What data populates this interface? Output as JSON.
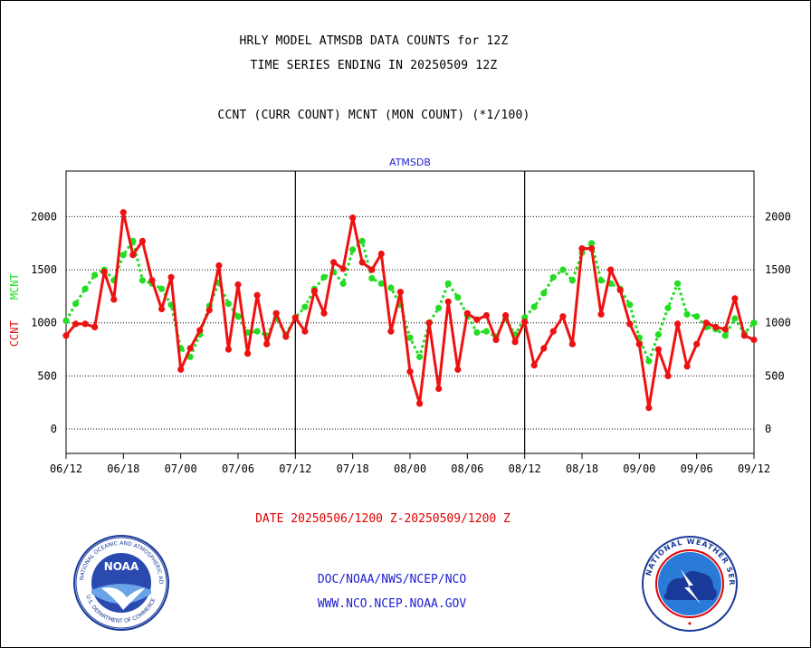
{
  "title": "HRLY MODEL ATMSDB DATA COUNTS for 12Z",
  "subtitle": "TIME SERIES ENDING IN 20250509 12Z",
  "legend_text": "CCNT (CURR COUNT) MCNT (MON COUNT) (*1/100)",
  "date_range": "DATE 20250506/1200 Z-20250509/1200 Z",
  "credit_line1": "DOC/NOAA/NWS/NCEP/NCO",
  "credit_line2": "WWW.NCO.NCEP.NOAA.GOV",
  "logos": {
    "left": "noaa-logo",
    "right": "national-weather-service-logo"
  },
  "colors": {
    "ccnt": "#ee1111",
    "mcnt": "#22dd22",
    "panel_label": "#2020d0",
    "grid": "#000000"
  },
  "chart_data": {
    "type": "line",
    "panel_label": "ATMSDB",
    "ylabel_left": "CCNT",
    "ylabel_right": "MCNT",
    "ylim": [
      -230,
      2430
    ],
    "yticks": [
      0,
      500,
      1000,
      1500,
      2000
    ],
    "xticks": [
      "06/12",
      "06/18",
      "07/00",
      "07/06",
      "07/12",
      "07/18",
      "08/00",
      "08/06",
      "08/12",
      "08/18",
      "09/00",
      "09/06",
      "09/12"
    ],
    "xlim_hours": [
      0,
      72
    ],
    "panel_dividers": [
      "07/12",
      "08/12"
    ],
    "grid": "dotted horizontal",
    "series": [
      {
        "name": "CCNT",
        "style": "solid",
        "x": [
          0,
          1,
          2,
          3,
          4,
          5,
          6,
          7,
          8,
          9,
          10,
          11,
          12,
          13,
          14,
          15,
          16,
          17,
          18,
          19,
          20,
          21,
          22,
          23,
          24,
          25,
          26,
          27,
          28,
          29,
          30,
          31,
          32,
          33,
          34,
          35,
          36,
          37,
          38,
          39,
          40,
          41,
          42,
          43,
          44,
          45,
          46,
          47,
          48,
          49,
          50,
          51,
          52,
          53,
          54,
          55,
          56,
          57,
          58,
          59,
          60,
          61,
          62,
          63,
          64,
          65,
          66,
          67,
          68,
          69,
          70,
          71,
          72
        ],
        "values": [
          880,
          990,
          990,
          960,
          1480,
          1220,
          2040,
          1640,
          1770,
          1400,
          1130,
          1430,
          560,
          760,
          930,
          1120,
          1540,
          750,
          1360,
          710,
          1260,
          800,
          1090,
          870,
          1050,
          920,
          1300,
          1090,
          1570,
          1510,
          1990,
          1570,
          1500,
          1650,
          920,
          1290,
          540,
          240,
          1000,
          380,
          1200,
          560,
          1090,
          1030,
          1070,
          840,
          1070,
          820,
          1010,
          600,
          760,
          920,
          1060,
          800,
          1700,
          1700,
          1080,
          1500,
          1310,
          990,
          800,
          200,
          750,
          500,
          990,
          590,
          800,
          1000,
          960,
          940,
          1230,
          880,
          840
        ]
      },
      {
        "name": "MCNT",
        "style": "dotted",
        "x": [
          0,
          1,
          2,
          3,
          4,
          5,
          6,
          7,
          8,
          9,
          10,
          11,
          12,
          13,
          14,
          15,
          16,
          17,
          18,
          19,
          20,
          21,
          22,
          23,
          24,
          25,
          26,
          27,
          28,
          29,
          30,
          31,
          32,
          33,
          34,
          35,
          36,
          37,
          38,
          39,
          40,
          41,
          42,
          43,
          44,
          45,
          46,
          47,
          48,
          49,
          50,
          51,
          52,
          53,
          54,
          55,
          56,
          57,
          58,
          59,
          60,
          61,
          62,
          63,
          64,
          65,
          66,
          67,
          68,
          69,
          70,
          71,
          72
        ],
        "values": [
          1020,
          1180,
          1320,
          1450,
          1500,
          1400,
          1640,
          1770,
          1400,
          1370,
          1320,
          1170,
          760,
          680,
          890,
          1160,
          1380,
          1180,
          1060,
          910,
          920,
          880,
          1040,
          890,
          1050,
          1150,
          1320,
          1430,
          1480,
          1370,
          1690,
          1770,
          1420,
          1370,
          1330,
          1170,
          860,
          680,
          1000,
          1140,
          1370,
          1240,
          1070,
          910,
          920,
          870,
          1040,
          890,
          1050,
          1150,
          1280,
          1430,
          1500,
          1400,
          1660,
          1750,
          1400,
          1370,
          1320,
          1170,
          860,
          640,
          890,
          1140,
          1370,
          1080,
          1060,
          960,
          940,
          880,
          1040,
          900,
          1000
        ]
      }
    ]
  }
}
